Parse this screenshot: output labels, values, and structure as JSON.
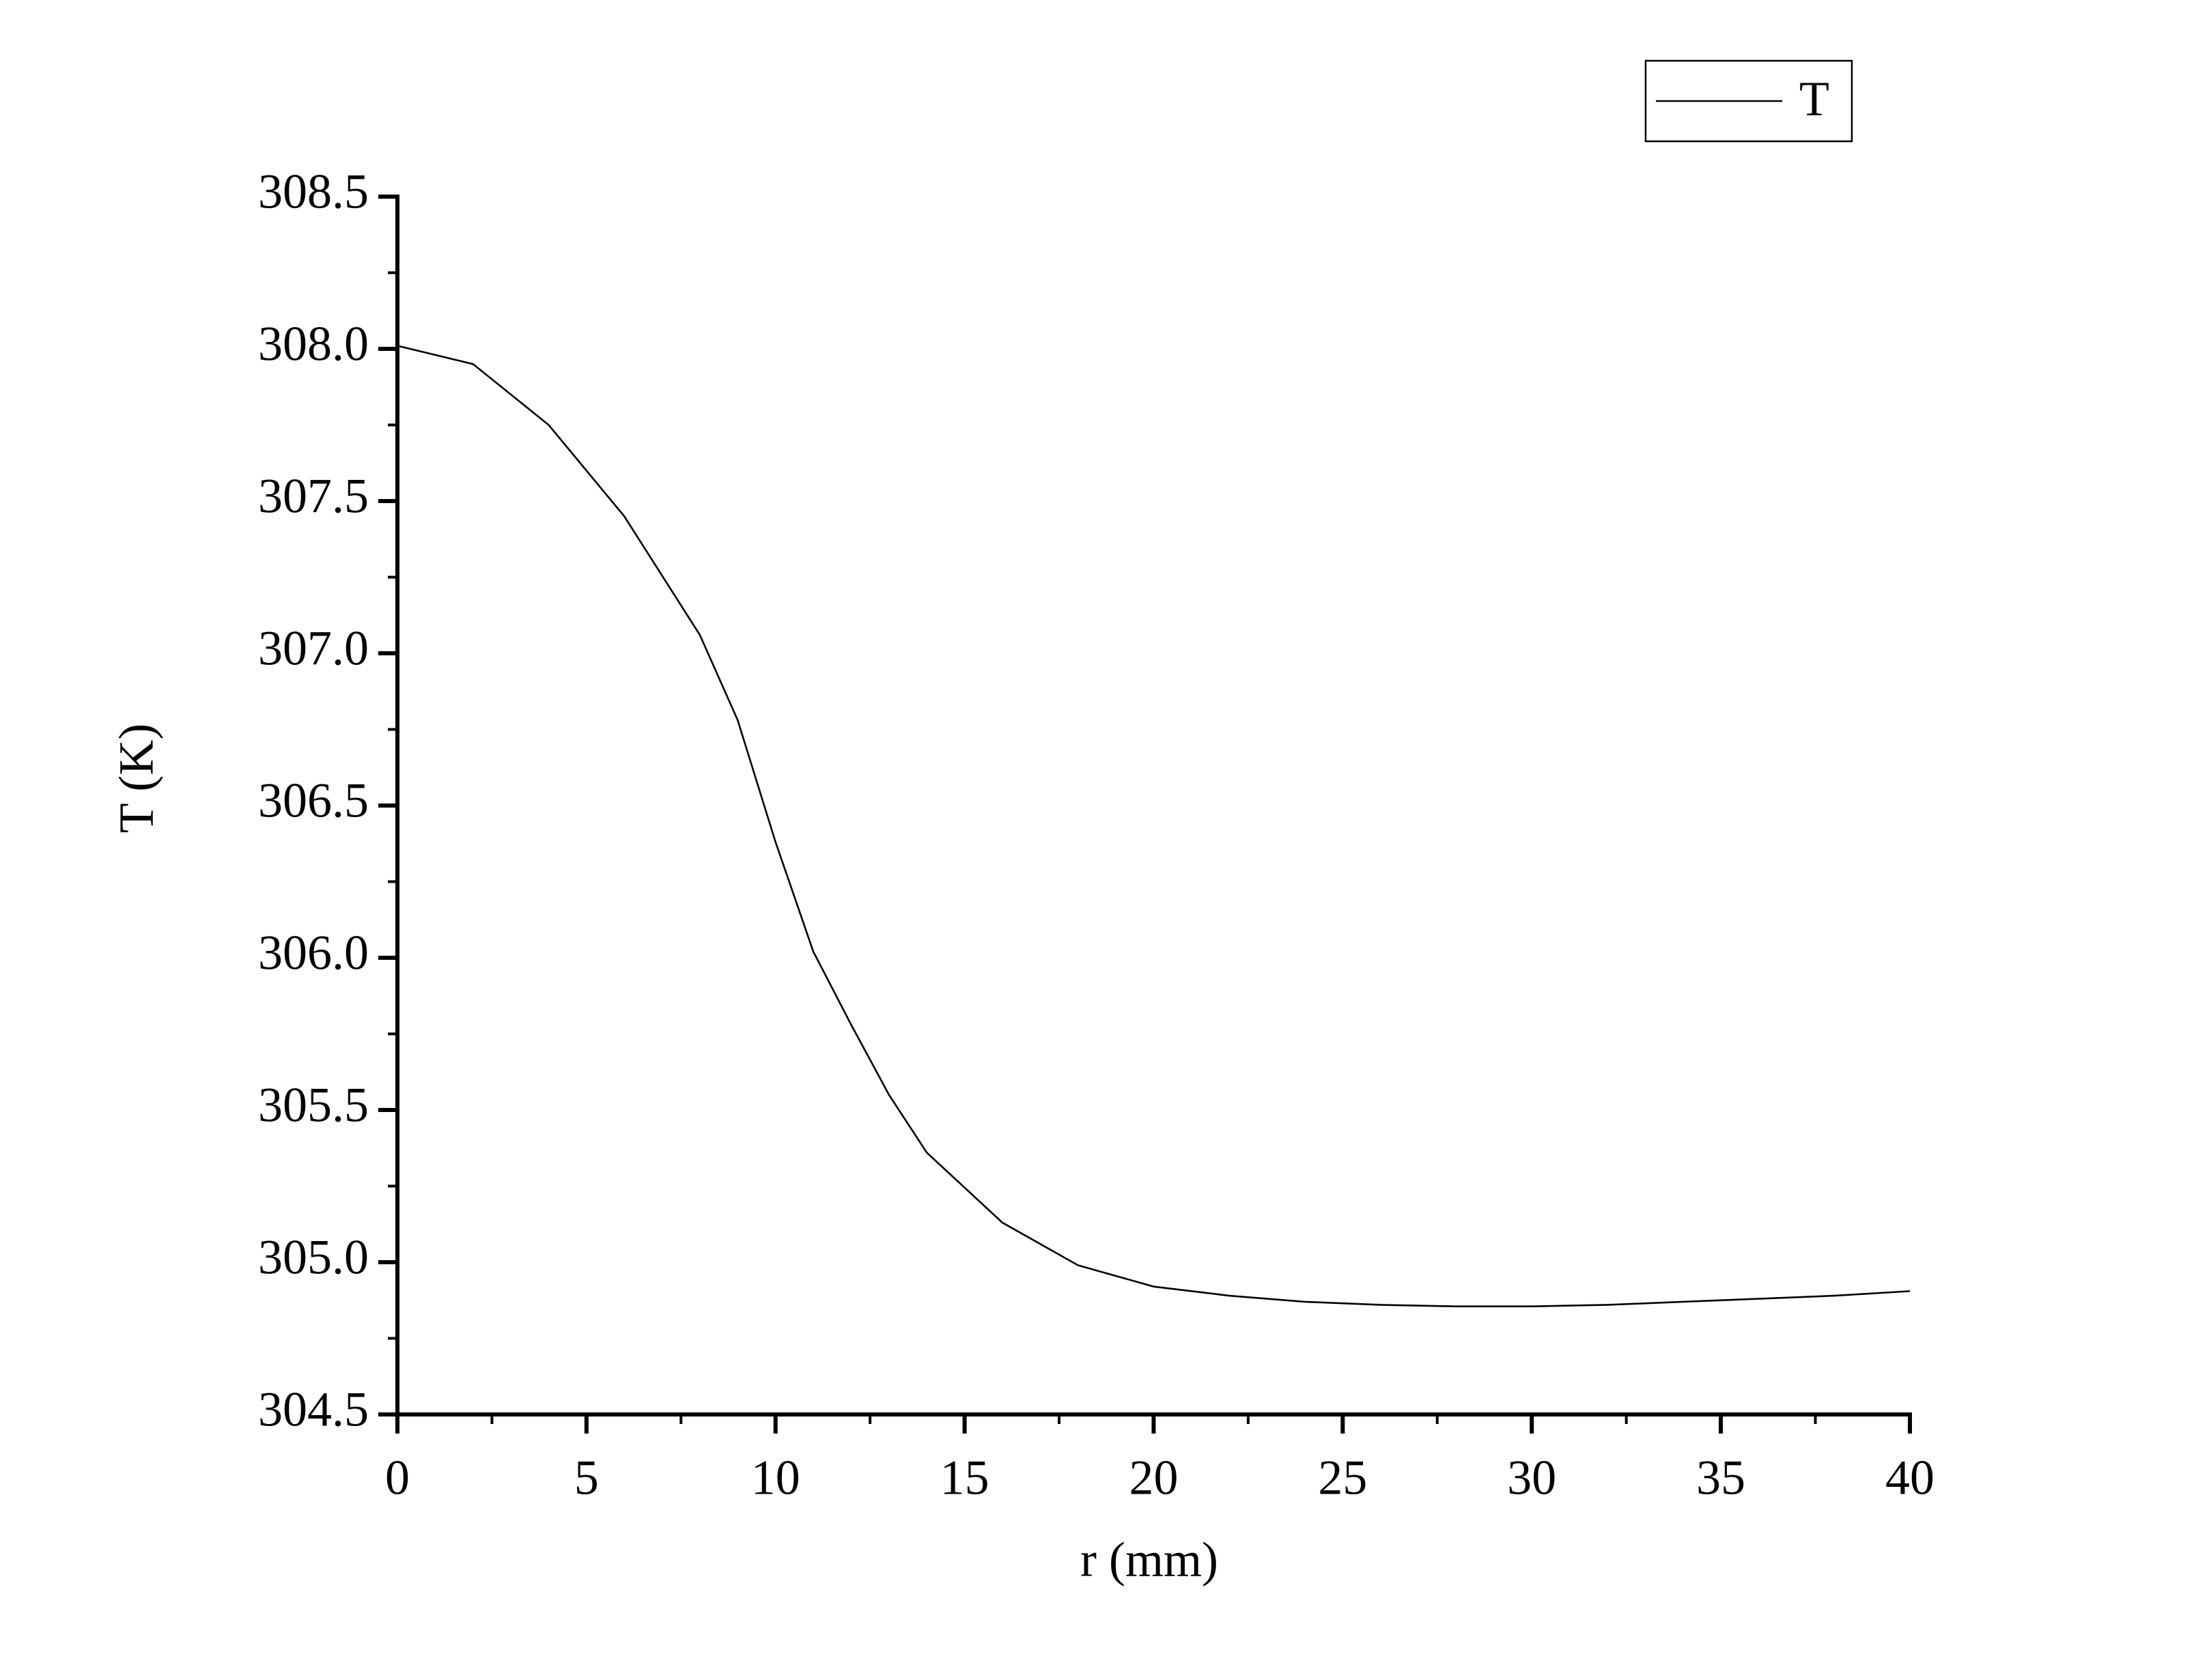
{
  "chart_data": {
    "type": "line",
    "x_label": "r (mm)",
    "y_label": "T (K)",
    "x": [
      0,
      2,
      4,
      6,
      8,
      9,
      10,
      11,
      12,
      13,
      14,
      16,
      18,
      20,
      22,
      24,
      26,
      28,
      30,
      32,
      34,
      36,
      38,
      40
    ],
    "series": [
      {
        "name": "T",
        "color": "#000000",
        "values": [
          308.01,
          307.95,
          307.75,
          307.45,
          307.06,
          306.78,
          306.38,
          306.02,
          305.78,
          305.55,
          305.36,
          305.13,
          304.99,
          304.92,
          304.89,
          304.87,
          304.86,
          304.855,
          304.855,
          304.86,
          304.87,
          304.88,
          304.89,
          304.905
        ]
      }
    ],
    "xlim": [
      0,
      40
    ],
    "xticks": [
      0,
      5,
      10,
      15,
      20,
      25,
      30,
      35,
      40
    ],
    "ylim": [
      304.5,
      308.5
    ],
    "yticks": [
      304.5,
      {
        "value": 305,
        "label": "305.0"
      },
      305.5,
      {
        "value": 306,
        "label": "306.0"
      },
      306.5,
      {
        "value": 307,
        "label": "307.0"
      },
      307.5,
      {
        "value": 308,
        "label": "308.0"
      },
      308.5
    ],
    "grid": false,
    "legend": "upper right"
  }
}
